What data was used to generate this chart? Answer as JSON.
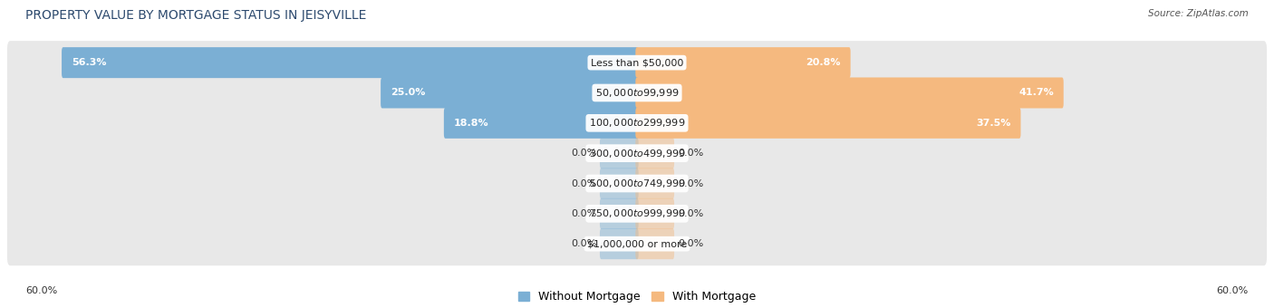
{
  "title": "PROPERTY VALUE BY MORTGAGE STATUS IN JEISYVILLE",
  "source": "Source: ZipAtlas.com",
  "categories": [
    "Less than $50,000",
    "$50,000 to $99,999",
    "$100,000 to $299,999",
    "$300,000 to $499,999",
    "$500,000 to $749,999",
    "$750,000 to $999,999",
    "$1,000,000 or more"
  ],
  "without_mortgage": [
    56.3,
    25.0,
    18.8,
    0.0,
    0.0,
    0.0,
    0.0
  ],
  "with_mortgage": [
    20.8,
    41.7,
    37.5,
    0.0,
    0.0,
    0.0,
    0.0
  ],
  "max_value": 60.0,
  "color_without": "#7bafd4",
  "color_with": "#f5b97f",
  "bg_row_color": "#e8e8e8",
  "bg_row_color_alt": "#f0f0f0",
  "title_fontsize": 10,
  "label_fontsize": 8,
  "value_fontsize": 8,
  "axis_label_fontsize": 8,
  "legend_fontsize": 9,
  "zero_stub": 3.5
}
